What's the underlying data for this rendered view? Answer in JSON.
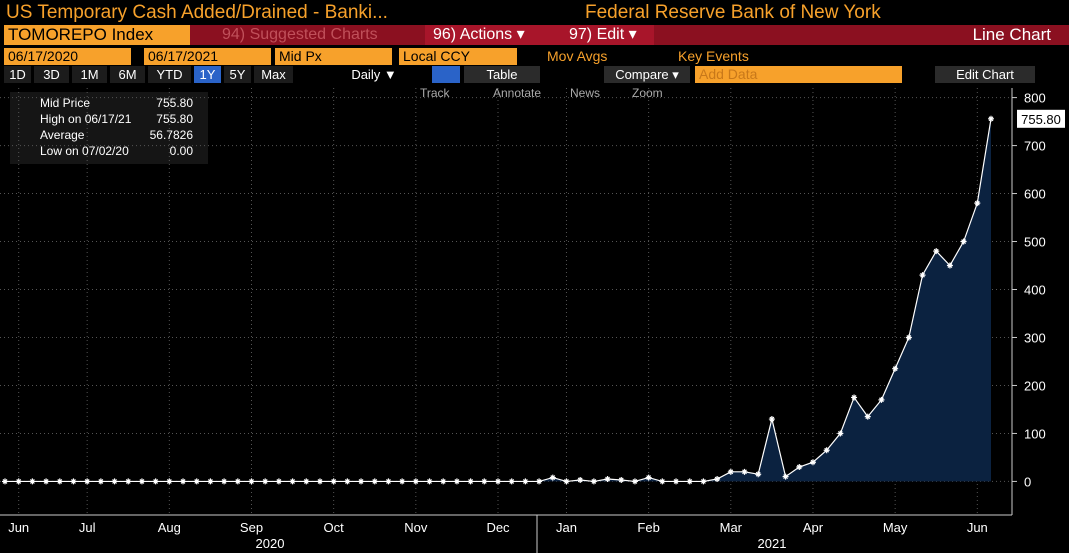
{
  "ui": {
    "title": "US Temporary Cash Added/Drained - Banki...",
    "source": "Federal Reserve Bank of New York",
    "ticker": "TOMOREPO Index",
    "suggested": "94) Suggested Charts",
    "actions": "96) Actions ▾",
    "edit": "97) Edit ▾",
    "view": "Line Chart",
    "start_date": "06/17/2020",
    "end_date": "06/17/2021",
    "field": "Mid Px",
    "currency": "Local CCY",
    "mov_avgs": "Mov Avgs",
    "key_events": "Key Events",
    "periods": [
      "1D",
      "3D",
      "1M",
      "6M",
      "YTD",
      "1Y",
      "5Y",
      "Max"
    ],
    "frequency": "Daily ▼",
    "table": "Table",
    "compare": "Compare ▾",
    "add_data": "Add Data",
    "edit_chart": "Edit Chart",
    "tools": [
      "Track",
      "Annotate",
      "News",
      "Zoom"
    ]
  },
  "legend": {
    "rows": [
      [
        "Mid Price",
        "755.80"
      ],
      [
        "High on 06/17/21",
        "755.80"
      ],
      [
        "Average",
        "56.7826"
      ],
      [
        "Low on 07/02/20",
        "0.00"
      ]
    ]
  },
  "chart_data": {
    "type": "line",
    "color": "#ffffff",
    "fill": "#0b2240",
    "grid": true,
    "last_label": "755.80",
    "categories": [
      null,
      "Jun",
      null,
      null,
      null,
      null,
      "Jul",
      null,
      null,
      null,
      null,
      null,
      "Aug",
      null,
      null,
      null,
      null,
      null,
      "Sep",
      null,
      null,
      null,
      null,
      null,
      "Oct",
      null,
      null,
      null,
      null,
      null,
      "Nov",
      null,
      null,
      null,
      null,
      null,
      "Dec",
      null,
      null,
      null,
      null,
      "Jan",
      null,
      null,
      null,
      null,
      null,
      "Feb",
      null,
      null,
      null,
      null,
      null,
      "Mar",
      null,
      null,
      null,
      null,
      null,
      "Apr",
      null,
      null,
      null,
      null,
      null,
      "May",
      null,
      null,
      null,
      null,
      null,
      "Jun",
      null
    ],
    "values": [
      0,
      0,
      0,
      0,
      0,
      0,
      0,
      0,
      0,
      0,
      0,
      0,
      0,
      0,
      0,
      0,
      0,
      0,
      0,
      0,
      0,
      0,
      0,
      0,
      0,
      0,
      0,
      0,
      0,
      0,
      0,
      0,
      0,
      0,
      0,
      0,
      0,
      0,
      0,
      0,
      8,
      0,
      3,
      0,
      5,
      3,
      0,
      8,
      0,
      0,
      0,
      0,
      5,
      20,
      20,
      15,
      130,
      10,
      30,
      40,
      65,
      100,
      175,
      135,
      170,
      235,
      300,
      430,
      480,
      450,
      500,
      580,
      755.8
    ],
    "years": [
      "2020",
      "2021"
    ],
    "ylim": [
      -70,
      820
    ],
    "yticks": [
      0,
      100,
      200,
      300,
      400,
      500,
      600,
      700,
      800
    ]
  }
}
